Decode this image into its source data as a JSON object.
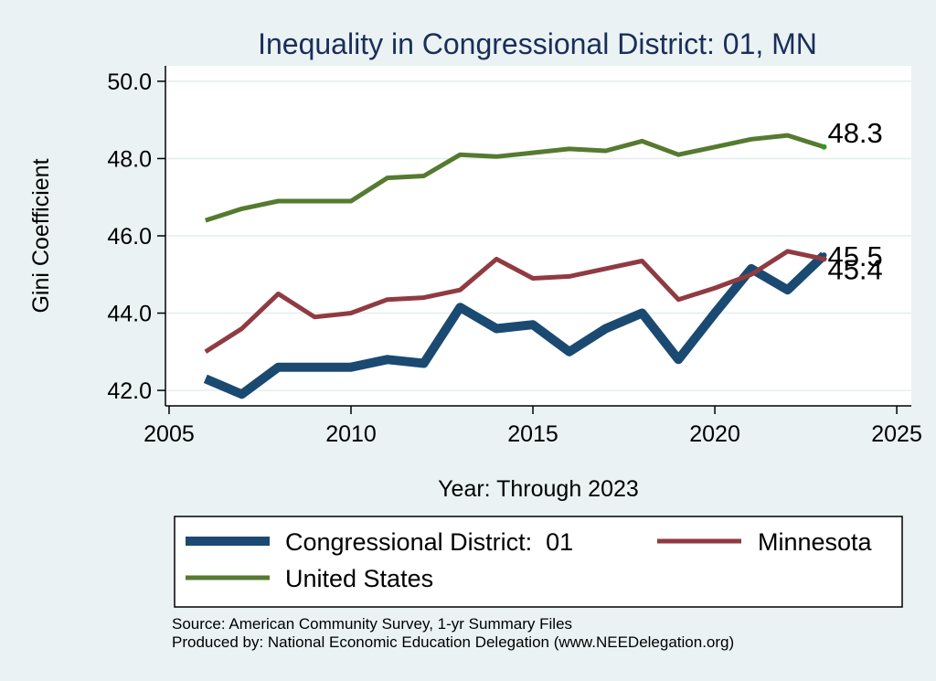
{
  "chart_data": {
    "type": "line",
    "title": "Inequality in Congressional District:  01, MN",
    "xlabel": "Year: Through 2023",
    "ylabel": "Gini Coefficient",
    "xlim": [
      2004.9,
      2025.4
    ],
    "ylim": [
      41.6,
      50.4
    ],
    "x_ticks": [
      "2005",
      "2010",
      "2015",
      "2020",
      "2025"
    ],
    "y_ticks": [
      "42.0",
      "44.0",
      "46.0",
      "48.0",
      "50.0"
    ],
    "x": [
      2006,
      2007,
      2008,
      2009,
      2010,
      2011,
      2012,
      2013,
      2014,
      2015,
      2016,
      2017,
      2018,
      2019,
      2020,
      2021,
      2022,
      2023
    ],
    "series": [
      {
        "name": "Congressional District:  01",
        "color": "#1a4a72",
        "values": [
          42.3,
          41.9,
          42.6,
          42.6,
          42.6,
          42.8,
          42.7,
          44.15,
          43.6,
          43.7,
          43.0,
          43.6,
          44.0,
          42.8,
          44.0,
          45.15,
          44.6,
          45.5
        ],
        "end_label": "45.5"
      },
      {
        "name": "Minnesota",
        "color": "#903a41",
        "values": [
          43.0,
          43.6,
          44.5,
          43.9,
          44.0,
          44.35,
          44.4,
          44.6,
          45.4,
          44.9,
          44.95,
          45.15,
          45.35,
          44.35,
          44.65,
          45.0,
          45.6,
          45.4
        ],
        "end_label": "45.4"
      },
      {
        "name": "United States",
        "color": "#557a30",
        "values": [
          46.4,
          46.7,
          46.9,
          46.9,
          46.9,
          47.5,
          47.55,
          48.1,
          48.05,
          48.15,
          48.25,
          48.2,
          48.45,
          48.1,
          48.3,
          48.5,
          48.6,
          48.3
        ],
        "end_label": "48.3"
      }
    ],
    "legend": {
      "entries": [
        "Congressional District:  01",
        "Minnesota",
        "United States"
      ],
      "placement": "bottom"
    }
  },
  "footnote": {
    "source": "Source: American Community Survey, 1-yr Summary Files",
    "producer": "Produced by: National Economic Education Delegation (www.NEEDelegation.org)"
  },
  "colors": {
    "background": "#eaf2f3",
    "plot_background": "#ffffff",
    "gridline": "#e4eeee",
    "title": "#1a2e5a"
  }
}
